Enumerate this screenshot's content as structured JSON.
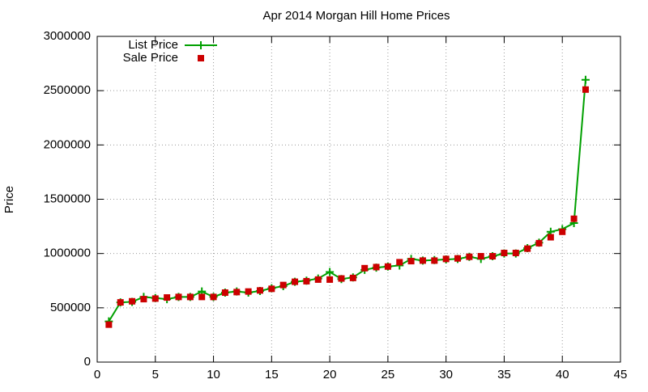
{
  "chart_data": {
    "type": "line",
    "title": "Apr 2014 Morgan Hill Home Prices",
    "y_label": "Price",
    "x": [
      1,
      2,
      3,
      4,
      5,
      6,
      7,
      8,
      9,
      10,
      11,
      12,
      13,
      14,
      15,
      16,
      17,
      18,
      19,
      20,
      21,
      22,
      23,
      24,
      25,
      26,
      27,
      28,
      29,
      30,
      31,
      32,
      33,
      34,
      35,
      36,
      37,
      38,
      39,
      40,
      41,
      42
    ],
    "series": [
      {
        "name": "List Price",
        "color": "#00a000",
        "marker": "plus",
        "line": true,
        "values": [
          375000,
          550000,
          555000,
          600000,
          590000,
          580000,
          600000,
          600000,
          650000,
          600000,
          640000,
          650000,
          640000,
          655000,
          680000,
          700000,
          740000,
          750000,
          770000,
          830000,
          765000,
          780000,
          850000,
          870000,
          880000,
          890000,
          950000,
          935000,
          940000,
          945000,
          950000,
          970000,
          950000,
          975000,
          1000000,
          1000000,
          1050000,
          1100000,
          1200000,
          1225000,
          1280000,
          2600000
        ]
      },
      {
        "name": "Sale Price",
        "color": "#cc0000",
        "marker": "square",
        "line": false,
        "values": [
          345000,
          550000,
          560000,
          580000,
          585000,
          595000,
          600000,
          600000,
          600000,
          600000,
          640000,
          645000,
          650000,
          660000,
          675000,
          710000,
          740000,
          745000,
          760000,
          760000,
          770000,
          775000,
          865000,
          875000,
          880000,
          920000,
          930000,
          935000,
          935000,
          950000,
          955000,
          970000,
          975000,
          975000,
          1005000,
          1005000,
          1045000,
          1095000,
          1150000,
          1200000,
          1320000,
          2510000
        ]
      }
    ],
    "xlim": [
      0,
      45
    ],
    "xticks": [
      0,
      5,
      10,
      15,
      20,
      25,
      30,
      35,
      40,
      45
    ],
    "ylim": [
      0,
      3000000
    ],
    "yticks": [
      0,
      500000,
      1000000,
      1500000,
      2000000,
      2500000,
      3000000
    ],
    "grid": true,
    "legend": "top-left"
  }
}
